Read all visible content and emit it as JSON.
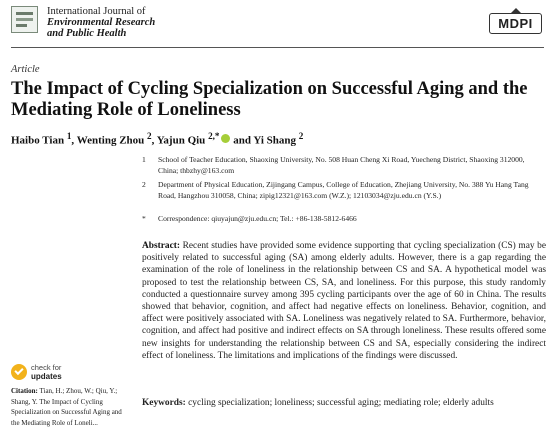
{
  "header": {
    "journal_line1": "International Journal of",
    "journal_line2": "Environmental Research",
    "journal_line3": "and Public Health",
    "publisher": "MDPI"
  },
  "article_type": "Article",
  "title": "The Impact of Cycling Specialization on Successful Aging and the Mediating Role of Loneliness",
  "authors": {
    "a1": "Haibo Tian ",
    "a1_sup": "1",
    "a2": ", Wenting Zhou ",
    "a2_sup": "2",
    "a3": ", Yajun Qiu ",
    "a3_sup": "2,*",
    "a4": " and Yi Shang ",
    "a4_sup": "2"
  },
  "affiliations": [
    {
      "num": "1",
      "text": "School of Teacher Education, Shaoxing University, No. 508 Huan Cheng Xi Road, Yuecheng District, Shaoxing 312000, China; thbzhy@163.com"
    },
    {
      "num": "2",
      "text": "Department of Physical Education, Zijingang Campus, College of Education, Zhejiang University, No. 388 Yu Hang Tang Road, Hangzhou 310058, China; zipig12321@163.com (W.Z.); 12103034@zju.edu.cn (Y.S.)"
    },
    {
      "num": "*",
      "text": "Correspondence: qiuyajun@zju.edu.cn; Tel.: +86-138-5812-6466"
    }
  ],
  "abstract": {
    "label": "Abstract:",
    "text": " Recent studies have provided some evidence supporting that cycling specialization (CS) may be positively related to successful aging (SA) among elderly adults. However, there is a gap regarding the examination of the role of loneliness in the relationship between CS and SA. A hypothetical model was proposed to test the relationship between CS, SA, and loneliness. For this purpose, this study randomly conducted a questionnaire survey among 395 cycling participants over the age of 60 in China. The results showed that behavior, cognition, and affect had negative effects on loneliness. Behavior, cognition, and affect were positively associated with SA. Loneliness was negatively related to SA. Furthermore, behavior, cognition, and affect had positive and indirect effects on SA through loneliness. These results offered some new insights for understanding the relationship between CS and SA, especially considering the indirect effect of loneliness. The limitations and implications of the findings were discussed."
  },
  "keywords": {
    "label": "Keywords:",
    "text": " cycling specialization; loneliness; successful aging; mediating role; elderly adults"
  },
  "sidebar": {
    "badge_line1": "check for",
    "badge_line2": "updates",
    "citation_label": "Citation:",
    "citation_text": " Tian, H.; Zhou, W.; Qiu, Y.; Shang, Y. The Impact of Cycling Specialization on Successful Aging and the Mediating Role of Loneli..."
  }
}
